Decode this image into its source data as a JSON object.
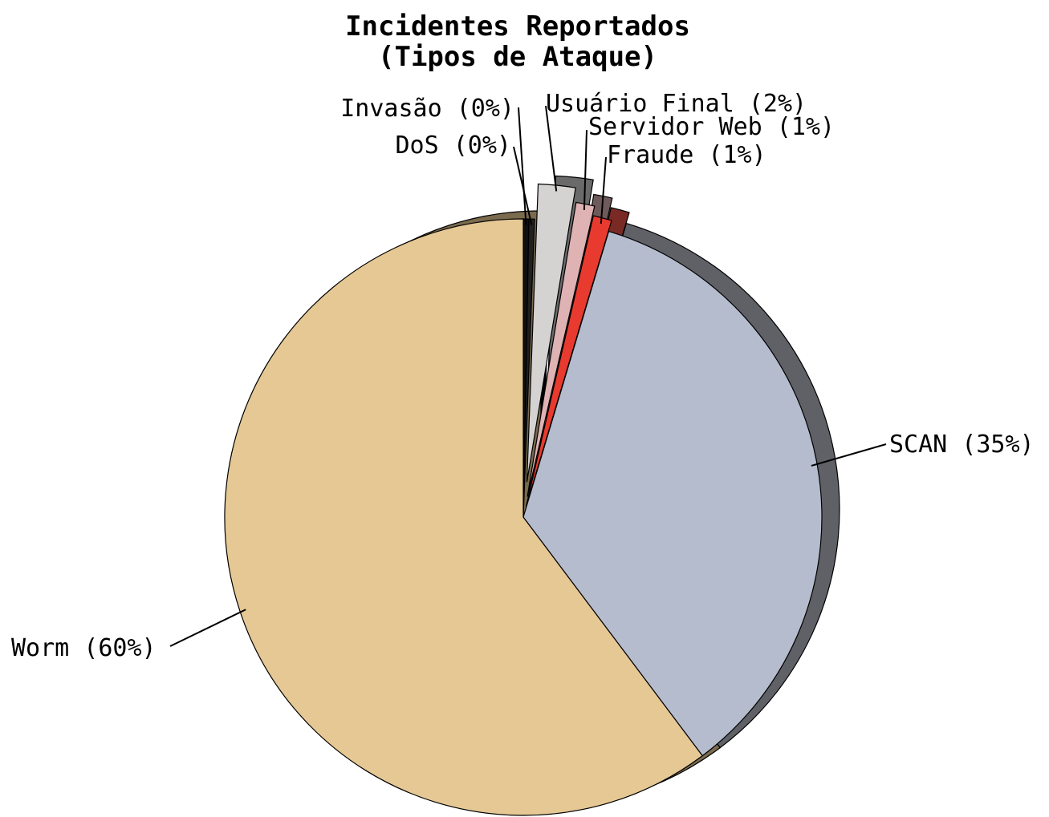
{
  "chart_data": {
    "type": "pie",
    "title": [
      "Incidentes Reportados",
      "(Tipos de Ataque)"
    ],
    "slices": [
      {
        "name": "Worm",
        "label": "Worm (60%)",
        "value": 60,
        "color": "#e5c894",
        "edge": "#7a6a4e"
      },
      {
        "name": "SCAN",
        "label": "SCAN (35%)",
        "value": 35,
        "color": "#b5bccd",
        "edge": "#5f6166"
      },
      {
        "name": "Fraude",
        "label": "Fraude (1%)",
        "value": 1,
        "color": "#e83a2e",
        "edge": "#7a2a24"
      },
      {
        "name": "Servidor Web",
        "label": "Servidor Web (1%)",
        "value": 1,
        "color": "#dfb2b4",
        "edge": "#6e5a5a"
      },
      {
        "name": "Usuário Final",
        "label": "Usuário Final (2%)",
        "value": 2,
        "color": "#d5d2d2",
        "edge": "#6a6a6a"
      },
      {
        "name": "DoS",
        "label": "DoS (0%)",
        "value": 0.3,
        "color": "#202020",
        "edge": "#000000"
      },
      {
        "name": "Invasão",
        "label": "Invasão (0%)",
        "value": 0.3,
        "color": "#101010",
        "edge": "#000000"
      }
    ]
  }
}
